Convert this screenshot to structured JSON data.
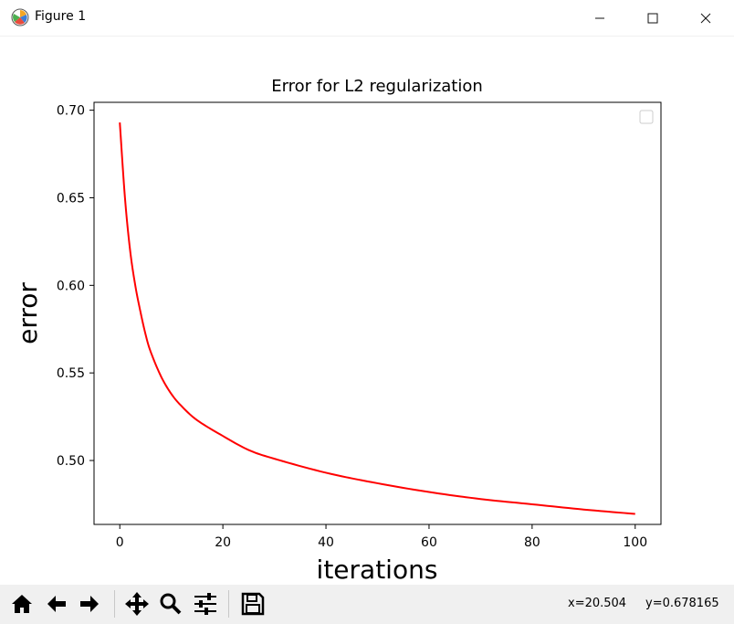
{
  "window": {
    "title": "Figure 1"
  },
  "icons": {
    "app": "matplotlib-icon",
    "minimize": "minimize-icon",
    "maximize": "maximize-icon",
    "close": "close-icon"
  },
  "toolbar": {
    "tools": [
      "home-icon",
      "back-icon",
      "forward-icon",
      "pan-icon",
      "zoom-icon",
      "configure-subplots-icon",
      "save-icon"
    ],
    "coord_x": "x=20.504",
    "coord_y": "y=0.678165"
  },
  "chart_data": {
    "type": "line",
    "title": "Error for L2 regularization",
    "xlabel": "iterations",
    "ylabel": "error",
    "xlim": [
      -5,
      105
    ],
    "ylim": [
      0.4635,
      0.7045
    ],
    "xticks": [
      0,
      20,
      40,
      60,
      80,
      100
    ],
    "xtick_labels": [
      "0",
      "20",
      "40",
      "60",
      "80",
      "100"
    ],
    "yticks": [
      0.5,
      0.55,
      0.6,
      0.65,
      0.7
    ],
    "ytick_labels": [
      "0.50",
      "0.55",
      "0.60",
      "0.65",
      "0.70"
    ],
    "grid": false,
    "legend": "top-right (empty)",
    "series": [
      {
        "color": "#ff0000",
        "x": [
          0,
          1,
          2,
          3,
          4,
          5,
          6,
          8,
          10,
          12,
          15,
          20,
          25,
          30,
          40,
          50,
          60,
          70,
          80,
          90,
          100
        ],
        "y": [
          0.693,
          0.65,
          0.62,
          0.6,
          0.585,
          0.572,
          0.562,
          0.548,
          0.538,
          0.531,
          0.523,
          0.514,
          0.506,
          0.501,
          0.493,
          0.487,
          0.482,
          0.478,
          0.475,
          0.472,
          0.4695
        ]
      }
    ]
  }
}
